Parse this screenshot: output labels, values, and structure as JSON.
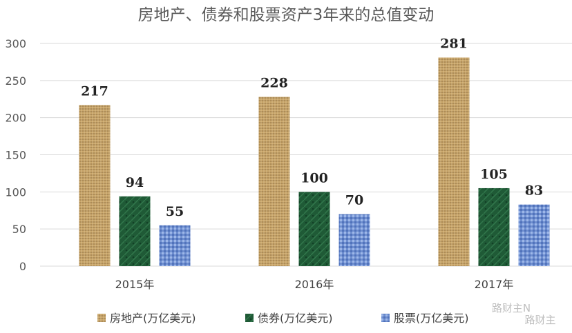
{
  "chart_data": {
    "type": "bar",
    "title": "房地产、债券和股票资产3年来的总值变动",
    "categories": [
      "2015年",
      "2016年",
      "2017年"
    ],
    "series": [
      {
        "name": "房地产(万亿美元)",
        "values": [
          217,
          228,
          281
        ],
        "color": "#c9a66b"
      },
      {
        "name": "债券(万亿美元)",
        "values": [
          94,
          100,
          105
        ],
        "color": "#1f5a36"
      },
      {
        "name": "股票(万亿美元)",
        "values": [
          55,
          70,
          83
        ],
        "color": "#6f8fd0"
      }
    ],
    "ylim": [
      0,
      300
    ],
    "yticks": [
      0,
      50,
      100,
      150,
      200,
      250,
      300
    ],
    "grid": true,
    "legend_position": "bottom",
    "data_labels": true
  },
  "watermark": {
    "top": "路财主N",
    "bottom": "路财主"
  }
}
